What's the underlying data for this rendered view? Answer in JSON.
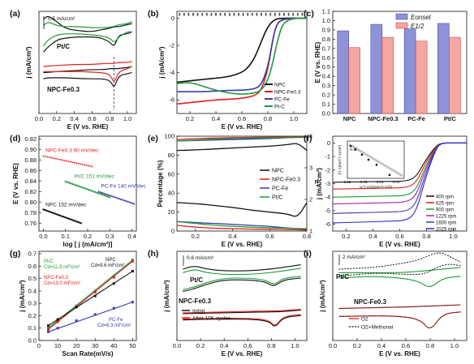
{
  "colors": {
    "black": "#111111",
    "red": "#e0201b",
    "green": "#1e9b3a",
    "blue": "#3a3aa8",
    "ebar": "#8e92d8",
    "ehalf": "#f3a6a2"
  },
  "chart_data": [
    {
      "id": "a",
      "panel": "(a)",
      "type": "line",
      "xlabel": "E (V vs. RHE)",
      "ylabel": "j (mA/cm²)",
      "xlim": [
        0,
        1.1
      ],
      "xticks": [
        "0.0",
        "0.2",
        "0.4",
        "0.6",
        "0.8",
        "1.0"
      ],
      "scale": "0.5 mA/cm²",
      "labels": [
        "Pt/C",
        "NPC-Fe0.3"
      ],
      "series": [
        {
          "color": "black",
          "x": [
            0.05,
            0.1,
            0.2,
            0.3,
            0.45,
            0.6,
            0.7,
            0.78,
            0.85,
            0.9,
            0.95,
            1.0,
            1.05
          ],
          "y": [
            0.92,
            0.96,
            0.9,
            0.83,
            0.81,
            0.8,
            0.82,
            0.83,
            0.85,
            0.85,
            0.86,
            0.87,
            0.88
          ]
        },
        {
          "color": "black",
          "x": [
            1.05,
            1.0,
            0.9,
            0.85,
            0.8,
            0.75,
            0.7,
            0.6,
            0.45,
            0.3,
            0.2,
            0.1,
            0.05
          ],
          "y": [
            0.8,
            0.78,
            0.77,
            0.65,
            0.7,
            0.72,
            0.74,
            0.75,
            0.75,
            0.74,
            0.72,
            0.65,
            0.6
          ]
        },
        {
          "color": "green",
          "x": [
            0.05,
            0.1,
            0.2,
            0.3,
            0.45,
            0.6,
            0.75,
            0.85,
            0.9,
            1.0,
            1.05
          ],
          "y": [
            0.86,
            0.9,
            0.86,
            0.85,
            0.85,
            0.84,
            0.84,
            0.85,
            0.87,
            0.88,
            0.9
          ]
        },
        {
          "color": "green",
          "x": [
            1.05,
            1.0,
            0.9,
            0.85,
            0.8,
            0.7,
            0.6,
            0.45,
            0.3,
            0.2,
            0.1,
            0.05
          ],
          "y": [
            0.8,
            0.8,
            0.75,
            0.69,
            0.74,
            0.76,
            0.77,
            0.78,
            0.78,
            0.77,
            0.72,
            0.66
          ]
        },
        {
          "color": "black",
          "x": [
            0.05,
            0.2,
            0.4,
            0.6,
            0.75,
            0.8,
            0.85,
            0.9,
            1.0,
            1.05
          ],
          "y": [
            0.4,
            0.41,
            0.42,
            0.43,
            0.43,
            0.44,
            0.44,
            0.44,
            0.45,
            0.46
          ]
        },
        {
          "color": "black",
          "x": [
            1.05,
            1.0,
            0.9,
            0.85,
            0.82,
            0.78,
            0.7,
            0.5,
            0.3,
            0.1,
            0.05
          ],
          "y": [
            0.4,
            0.39,
            0.37,
            0.25,
            0.3,
            0.33,
            0.34,
            0.34,
            0.35,
            0.35,
            0.34
          ]
        },
        {
          "color": "red",
          "x": [
            0.05,
            0.2,
            0.4,
            0.6,
            0.75,
            0.8,
            0.85,
            0.9,
            1.0,
            1.05
          ],
          "y": [
            0.46,
            0.47,
            0.48,
            0.48,
            0.49,
            0.49,
            0.49,
            0.5,
            0.5,
            0.51
          ]
        },
        {
          "color": "red",
          "x": [
            1.05,
            1.0,
            0.9,
            0.85,
            0.82,
            0.78,
            0.7,
            0.5,
            0.3,
            0.1,
            0.05
          ],
          "y": [
            0.46,
            0.44,
            0.41,
            0.3,
            0.35,
            0.39,
            0.4,
            0.41,
            0.41,
            0.41,
            0.41
          ]
        }
      ]
    },
    {
      "id": "b",
      "panel": "(b)",
      "type": "line",
      "xlabel": "E (V vs. RHE)",
      "ylabel": "j (mA/cm²)",
      "xlim": [
        0.1,
        1.1
      ],
      "ylim": [
        -7,
        0.5
      ],
      "xticks": [
        "0.2",
        "0.4",
        "0.6",
        "0.8",
        "1.0"
      ],
      "yticks": [
        "0",
        "-2",
        "-4",
        "-6"
      ],
      "legend": [
        "NPC",
        "NPC-Fe0.3",
        "PC-Fe",
        "Pt-C"
      ],
      "series": [
        {
          "name": "NPC",
          "color": "black",
          "x": [
            0.1,
            0.2,
            0.3,
            0.4,
            0.5,
            0.6,
            0.65,
            0.7,
            0.75,
            0.8,
            0.85,
            0.9,
            1.0,
            1.1
          ],
          "y": [
            -4.7,
            -4.6,
            -4.5,
            -4.4,
            -4.3,
            -4.0,
            -3.6,
            -2.9,
            -1.7,
            -0.6,
            -0.1,
            0,
            0,
            0
          ]
        },
        {
          "name": "NPC-Fe0.3",
          "color": "red",
          "x": [
            0.1,
            0.2,
            0.3,
            0.4,
            0.5,
            0.6,
            0.7,
            0.75,
            0.8,
            0.83,
            0.86,
            0.9,
            1.0,
            1.1
          ],
          "y": [
            -6.3,
            -6.2,
            -6.1,
            -6.0,
            -5.95,
            -5.9,
            -5.7,
            -5.3,
            -3.8,
            -2.0,
            -0.6,
            -0.1,
            0,
            0
          ]
        },
        {
          "name": "PC-Fe",
          "color": "blue",
          "x": [
            0.1,
            0.2,
            0.3,
            0.4,
            0.5,
            0.6,
            0.7,
            0.75,
            0.8,
            0.83,
            0.86,
            0.9,
            1.0,
            1.1
          ],
          "y": [
            -5.4,
            -5.4,
            -5.4,
            -5.35,
            -5.3,
            -5.3,
            -5.2,
            -4.9,
            -3.6,
            -2.0,
            -0.6,
            -0.1,
            0,
            0
          ]
        },
        {
          "name": "Pt-C",
          "color": "green",
          "x": [
            0.1,
            0.2,
            0.3,
            0.4,
            0.5,
            0.6,
            0.7,
            0.75,
            0.8,
            0.84,
            0.88,
            0.92,
            1.0,
            1.1
          ],
          "y": [
            -4.8,
            -4.7,
            -5.0,
            -5.3,
            -5.5,
            -5.6,
            -5.5,
            -5.3,
            -4.6,
            -3.2,
            -1.4,
            -0.3,
            0,
            0
          ]
        }
      ],
      "dotted": [
        {
          "color": "black",
          "y": 0.33
        },
        {
          "color": "red",
          "y": 0.28
        },
        {
          "color": "blue",
          "y": 0.24
        },
        {
          "color": "green",
          "y": 0.2
        }
      ]
    },
    {
      "id": "c",
      "panel": "(c)",
      "type": "bar",
      "ylabel": "E (V vs. RHE)",
      "ylim": [
        0,
        1.1
      ],
      "yticks": [
        "0.0",
        "0.1",
        "0.2",
        "0.3",
        "0.4",
        "0.5",
        "0.6",
        "0.7",
        "0.8",
        "0.9",
        "1.0",
        "1.1"
      ],
      "categories": [
        "NPC",
        "NPC-Fe0.3",
        "PC-Fe",
        "Pt/C"
      ],
      "legend": [
        "Eonset",
        "E1/2"
      ],
      "series": [
        {
          "name": "Eonset",
          "values": [
            0.89,
            0.96,
            0.91,
            0.97
          ]
        },
        {
          "name": "E1/2",
          "values": [
            0.71,
            0.82,
            0.78,
            0.82
          ]
        }
      ]
    },
    {
      "id": "d",
      "panel": "(d)",
      "type": "scatter",
      "xlabel": "log [ j (mA/cm²)]",
      "ylabel": "E (V vs. RHE)",
      "xlim": [
        -0.02,
        0.42
      ],
      "ylim": [
        0.745,
        0.925
      ],
      "xticks": [
        "0.0",
        "0.1",
        "0.2",
        "0.3",
        "0.4"
      ],
      "yticks": [
        "0.76",
        "0.78",
        "0.80",
        "0.82",
        "0.84",
        "0.86",
        "0.88",
        "0.90",
        "0.92"
      ],
      "series": [
        {
          "label": "NPC-Fe0.3  90 mV/dec",
          "color": "red",
          "x0": 0.0,
          "x1": 0.22,
          "y0": 0.887,
          "y1": 0.867
        },
        {
          "label": "Pt/C  151 mV/dec",
          "color": "green",
          "x0": 0.1,
          "x1": 0.3,
          "y0": 0.839,
          "y1": 0.809
        },
        {
          "label": "PC-Fe  140 mV/dec",
          "color": "blue",
          "x0": 0.25,
          "x1": 0.41,
          "y0": 0.82,
          "y1": 0.797
        },
        {
          "label": "NPC  152 mV/dec",
          "color": "black",
          "x0": 0.0,
          "x1": 0.17,
          "y0": 0.786,
          "y1": 0.76
        }
      ]
    },
    {
      "id": "e",
      "panel": "(e)",
      "type": "line",
      "xlabel": "E (V vs. RHE)",
      "ylabel": "Percentage (%)",
      "ylabel2": "n",
      "xlim": [
        0.1,
        0.8
      ],
      "ylim": [
        0,
        100
      ],
      "xticks": [
        "0.2",
        "0.4",
        "0.6",
        "0.8"
      ],
      "yticks": [
        "0",
        "20",
        "40",
        "60",
        "80",
        "100"
      ],
      "y2ticks": [
        "1",
        "2",
        "3",
        "4"
      ],
      "legend": [
        "NPC",
        "NPC-Fe0.3",
        "PC-Fe",
        "Pt/C"
      ],
      "series": [
        {
          "name": "NPC",
          "color": "black",
          "x": [
            0.1,
            0.2,
            0.3,
            0.4,
            0.5,
            0.6,
            0.7,
            0.75,
            0.8
          ],
          "y": [
            30,
            29,
            27,
            25,
            22,
            20,
            18,
            14,
            30
          ]
        },
        {
          "name": "NPC",
          "color": "black",
          "x": [
            0.1,
            0.2,
            0.3,
            0.4,
            0.5,
            0.6,
            0.7,
            0.75,
            0.8
          ],
          "y": [
            85,
            85.5,
            86.5,
            87.5,
            88.5,
            89.5,
            91,
            93,
            85
          ]
        },
        {
          "name": "NPC-Fe0.3",
          "color": "red",
          "x": [
            0.1,
            0.2,
            0.3,
            0.4,
            0.5,
            0.6,
            0.7,
            0.8
          ],
          "y": [
            6,
            4,
            3,
            2.5,
            2,
            2,
            1.5,
            1
          ]
        },
        {
          "name": "NPC-Fe0.3",
          "color": "red",
          "x": [
            0.1,
            0.2,
            0.3,
            0.4,
            0.5,
            0.6,
            0.7,
            0.8
          ],
          "y": [
            96.5,
            97.5,
            98,
            98.5,
            98.8,
            99,
            99.2,
            99.3
          ]
        },
        {
          "name": "PC-Fe",
          "color": "blue",
          "x": [
            0.1,
            0.2,
            0.3,
            0.4,
            0.5,
            0.6,
            0.7,
            0.8
          ],
          "y": [
            10,
            9,
            8,
            7,
            6,
            5,
            3,
            2
          ]
        },
        {
          "name": "PC-Fe",
          "color": "blue",
          "x": [
            0.1,
            0.2,
            0.3,
            0.4,
            0.5,
            0.6,
            0.7,
            0.8
          ],
          "y": [
            95,
            95.5,
            96,
            96.5,
            97,
            97.5,
            98.5,
            99
          ]
        },
        {
          "name": "Pt/C",
          "color": "green",
          "x": [
            0.1,
            0.2,
            0.3,
            0.4,
            0.5,
            0.6,
            0.7,
            0.8
          ],
          "y": [
            10,
            8,
            6,
            5,
            4,
            3.5,
            3,
            2.5
          ]
        },
        {
          "name": "Pt/C",
          "color": "green",
          "x": [
            0.1,
            0.2,
            0.3,
            0.4,
            0.5,
            0.6,
            0.7,
            0.8
          ],
          "y": [
            95,
            96,
            97,
            97.5,
            98,
            98.3,
            98.5,
            98.7
          ]
        }
      ]
    },
    {
      "id": "f",
      "panel": "(f)",
      "type": "line",
      "xlabel": "E (V vs. RHE)",
      "ylabel": "j (mA/cm²)",
      "xlim": [
        0.1,
        1.1
      ],
      "ylim": [
        -6.5,
        0.5
      ],
      "xticks": [
        "0.2",
        "0.4",
        "0.6",
        "0.8",
        "1.0"
      ],
      "yticks": [
        "0",
        "-1",
        "-2",
        "-3",
        "-4",
        "-5",
        "-6"
      ],
      "legend": [
        "400 rpm",
        "625 rpm",
        "900 rpm",
        "1225 rpm",
        "1600 rpm",
        "2025 rpm"
      ],
      "plateaus": [
        -2.9,
        -3.4,
        -4.0,
        -4.5,
        -5.2,
        -5.9
      ],
      "series_colors": [
        "#111111",
        "#e0201b",
        "#1e9b3a",
        "#b01fb0",
        "#3a3aa8",
        "#2a2ad0"
      ],
      "inset": {
        "xticks": [
          "0.02",
          "0.03",
          "0.04",
          "0.05"
        ],
        "xlabel": "ω^(-1/2)(rpm^(-1/2))",
        "ylabel": "j^(-1)(mA^(-1)cm²)",
        "ytick": "-0.3",
        "x": [
          0.022,
          0.025,
          0.029,
          0.033,
          0.038,
          0.046
        ],
        "y": [
          -0.17,
          -0.19,
          -0.22,
          -0.25,
          -0.28,
          -0.34
        ]
      }
    },
    {
      "id": "g",
      "panel": "(g)",
      "type": "scatter",
      "xlabel": "Scan Rate(mV/s)",
      "ylabel": "j (mA/cm²)",
      "xlim": [
        0,
        52
      ],
      "ylim": [
        0,
        0.72
      ],
      "xticks": [
        "0",
        "10",
        "20",
        "30",
        "40",
        "50"
      ],
      "yticks": [
        "0.0",
        "0.1",
        "0.2",
        "0.3",
        "0.4",
        "0.5",
        "0.6",
        "0.7"
      ],
      "series": [
        {
          "name": "Pt/C",
          "color": "green",
          "x": [
            5,
            10,
            20,
            30,
            40,
            50
          ],
          "y": [
            0.1,
            0.16,
            0.28,
            0.4,
            0.52,
            0.65
          ]
        },
        {
          "name": "NPC-Fe0.3",
          "color": "red",
          "x": [
            5,
            10,
            20,
            30,
            40,
            50
          ],
          "y": [
            0.09,
            0.15,
            0.27,
            0.39,
            0.51,
            0.64
          ]
        },
        {
          "name": "NPC",
          "color": "black",
          "x": [
            5,
            10,
            20,
            30,
            40,
            50
          ],
          "y": [
            0.12,
            0.17,
            0.27,
            0.36,
            0.46,
            0.56
          ]
        },
        {
          "name": "PC-Fe",
          "color": "blue",
          "x": [
            5,
            10,
            20,
            30,
            40,
            50
          ],
          "y": [
            0.07,
            0.1,
            0.16,
            0.21,
            0.26,
            0.31
          ]
        }
      ],
      "notes": [
        {
          "label": "Pt/C",
          "value": "Cd=11.9 mF/cm²",
          "color": "green"
        },
        {
          "label": "NPC-Fe0.3",
          "value": "Cd=13.0 mF/cm²",
          "color": "red"
        },
        {
          "label": "NPC",
          "value": "Cd=9.6 mF/cm²",
          "color": "black"
        },
        {
          "label": "PC-Fe",
          "value": "Cd=6.3 mF/cm²",
          "color": "blue"
        }
      ]
    },
    {
      "id": "h",
      "panel": "(h)",
      "type": "line",
      "xlabel": "E (V vs. RHE)",
      "ylabel": "j (mA/cm²)",
      "xlim": [
        0,
        1.1
      ],
      "xticks": [
        "0.0",
        "0.2",
        "0.4",
        "0.6",
        "0.8",
        "1.0"
      ],
      "scale": "0.6 mA/cm²",
      "labels": [
        "Pt/C",
        "NPC-Fe0.3"
      ],
      "legend": [
        "Initial",
        "After 10K cycles"
      ]
    },
    {
      "id": "i",
      "panel": "(i)",
      "type": "line",
      "xlabel": "E (V vs. RHE)",
      "ylabel": "j (mA/cm²)",
      "xlim": [
        0,
        1.1
      ],
      "xticks": [
        "0.0",
        "0.2",
        "0.4",
        "0.6",
        "0.8",
        "1.0"
      ],
      "scale": "2 mA/cm²",
      "labels": [
        "Pt/C",
        "NPC-Fe0.3"
      ],
      "legend": [
        "O2",
        "O2+Methonal"
      ]
    }
  ]
}
